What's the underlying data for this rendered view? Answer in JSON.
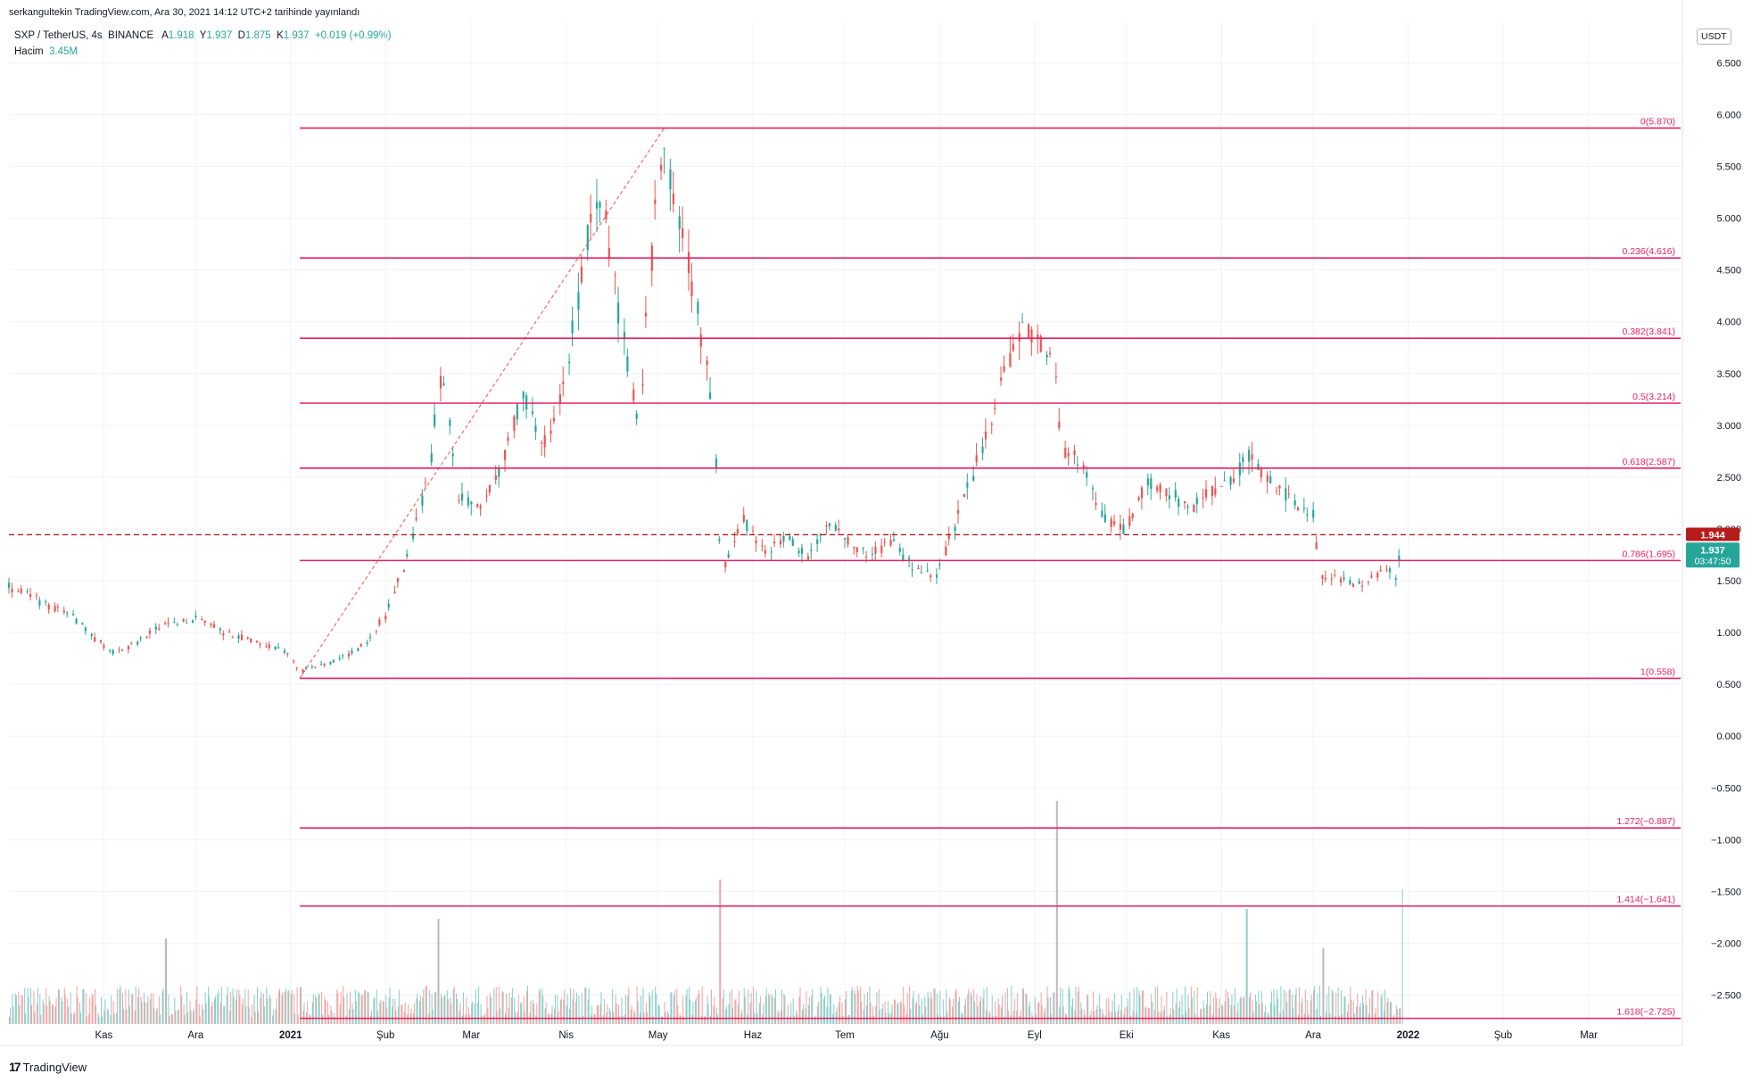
{
  "header": {
    "published": "serkangultekin TradingView.com, Ara 30, 2021 14:12 UTC+2 tarihinde yayınlandı"
  },
  "symbol": {
    "name": "SXP / TetherUS, 4s, BINANCE",
    "open_label": "A",
    "open": "1.918",
    "high_label": "Y",
    "high": "1.937",
    "low_label": "D",
    "low": "1.875",
    "close_label": "K",
    "close": "1.937",
    "change": "+0.019 (+0.99%)"
  },
  "volume": {
    "label": "Hacim",
    "value": "3.45M"
  },
  "currency": "USDT",
  "footer": {
    "logo_mark": "17",
    "brand": "TradingView"
  },
  "colors": {
    "up": "#26a69a",
    "down": "#ef5350",
    "fib_line": "#e91e63",
    "fib_label": "#e91e63",
    "last_price_line": "#b71c1c",
    "grid": "#f0f3fa",
    "trend": "#ef5350"
  },
  "chart_data": {
    "type": "candlestick",
    "symbol": "SXP / TetherUS",
    "interval": "4s",
    "exchange": "BINANCE",
    "y_axis": {
      "ticks": [
        "6.500",
        "6.000",
        "5.500",
        "5.000",
        "4.500",
        "4.000",
        "3.500",
        "3.000",
        "2.500",
        "2.000",
        "1.500",
        "1.000",
        "0.500",
        "0.000",
        "−0.500",
        "−1.000",
        "−1.500",
        "−2.000",
        "−2.500"
      ],
      "tick_values": [
        6.5,
        6.0,
        5.5,
        5.0,
        4.5,
        4.0,
        3.5,
        3.0,
        2.5,
        2.0,
        1.5,
        1.0,
        0.5,
        0.0,
        -0.5,
        -1.0,
        -1.5,
        -2.0,
        -2.5
      ],
      "range": [
        -2.78,
        6.9
      ]
    },
    "x_axis": {
      "labels": [
        "Kas",
        "Ara",
        "2021",
        "Şub",
        "Mar",
        "Nis",
        "May",
        "Haz",
        "Tem",
        "Ağu",
        "Eyl",
        "Eki",
        "Kas",
        "Ara",
        "2022",
        "Şub",
        "Mar"
      ],
      "bold": [
        "2021",
        "2022"
      ],
      "dates": [
        "2020-11-01",
        "2020-12-01",
        "2021-01-01",
        "2021-02-01",
        "2021-03-01",
        "2021-04-01",
        "2021-05-01",
        "2021-06-01",
        "2021-07-01",
        "2021-08-01",
        "2021-09-01",
        "2021-10-01",
        "2021-11-01",
        "2021-12-01",
        "2022-01-01",
        "2022-02-01",
        "2022-03-01"
      ],
      "range": [
        "2020-10-01",
        "2022-03-31"
      ]
    },
    "price_series": [
      [
        "2020-10-01",
        1.45
      ],
      [
        "2020-10-08",
        1.35
      ],
      [
        "2020-10-15",
        1.25
      ],
      [
        "2020-10-22",
        1.15
      ],
      [
        "2020-10-29",
        0.95
      ],
      [
        "2020-11-05",
        0.8
      ],
      [
        "2020-11-12",
        0.9
      ],
      [
        "2020-11-19",
        1.05
      ],
      [
        "2020-11-26",
        1.1
      ],
      [
        "2020-12-03",
        1.15
      ],
      [
        "2020-12-10",
        1.0
      ],
      [
        "2020-12-17",
        0.95
      ],
      [
        "2020-12-24",
        0.88
      ],
      [
        "2020-12-31",
        0.82
      ],
      [
        "2021-01-04",
        0.62
      ],
      [
        "2021-01-11",
        0.68
      ],
      [
        "2021-01-18",
        0.75
      ],
      [
        "2021-01-25",
        0.88
      ],
      [
        "2021-02-01",
        1.15
      ],
      [
        "2021-02-08",
        1.7
      ],
      [
        "2021-02-15",
        2.5
      ],
      [
        "2021-02-20",
        3.6
      ],
      [
        "2021-02-25",
        2.3
      ],
      [
        "2021-03-04",
        2.2
      ],
      [
        "2021-03-11",
        2.6
      ],
      [
        "2021-03-18",
        3.3
      ],
      [
        "2021-03-25",
        2.8
      ],
      [
        "2021-04-01",
        3.4
      ],
      [
        "2021-04-08",
        4.8
      ],
      [
        "2021-04-13",
        5.2
      ],
      [
        "2021-04-20",
        3.8
      ],
      [
        "2021-04-25",
        3.0
      ],
      [
        "2021-04-30",
        5.0
      ],
      [
        "2021-05-03",
        5.6
      ],
      [
        "2021-05-08",
        5.0
      ],
      [
        "2021-05-13",
        4.3
      ],
      [
        "2021-05-19",
        3.2
      ],
      [
        "2021-05-22",
        1.6
      ],
      [
        "2021-05-29",
        2.1
      ],
      [
        "2021-06-05",
        1.8
      ],
      [
        "2021-06-12",
        1.9
      ],
      [
        "2021-06-19",
        1.75
      ],
      [
        "2021-06-26",
        2.1
      ],
      [
        "2021-07-03",
        1.85
      ],
      [
        "2021-07-10",
        1.75
      ],
      [
        "2021-07-17",
        1.9
      ],
      [
        "2021-07-24",
        1.6
      ],
      [
        "2021-07-31",
        1.55
      ],
      [
        "2021-08-07",
        2.1
      ],
      [
        "2021-08-14",
        2.7
      ],
      [
        "2021-08-21",
        3.4
      ],
      [
        "2021-08-28",
        3.9
      ],
      [
        "2021-09-04",
        3.8
      ],
      [
        "2021-09-08",
        3.5
      ],
      [
        "2021-09-10",
        2.8
      ],
      [
        "2021-09-17",
        2.6
      ],
      [
        "2021-09-24",
        2.1
      ],
      [
        "2021-10-01",
        2.0
      ],
      [
        "2021-10-08",
        2.45
      ],
      [
        "2021-10-15",
        2.35
      ],
      [
        "2021-10-22",
        2.2
      ],
      [
        "2021-10-29",
        2.35
      ],
      [
        "2021-11-05",
        2.5
      ],
      [
        "2021-11-10",
        2.7
      ],
      [
        "2021-11-17",
        2.45
      ],
      [
        "2021-11-24",
        2.3
      ],
      [
        "2021-12-01",
        2.15
      ],
      [
        "2021-12-04",
        1.55
      ],
      [
        "2021-12-11",
        1.5
      ],
      [
        "2021-12-18",
        1.45
      ],
      [
        "2021-12-25",
        1.62
      ],
      [
        "2021-12-29",
        1.5
      ],
      [
        "2021-12-30",
        1.937
      ]
    ],
    "last_price": {
      "value": 1.944,
      "label": "1.944"
    },
    "current_price": {
      "value": 1.937,
      "label": "1.937",
      "countdown": "03:47:50"
    },
    "trend_line": {
      "from": [
        "2021-01-04",
        0.558
      ],
      "to": [
        "2021-05-03",
        5.87
      ]
    },
    "fibonacci": {
      "start_date": "2021-01-04",
      "levels": [
        {
          "ratio": "0",
          "value": 5.87,
          "label": "0(5.870)"
        },
        {
          "ratio": "0.236",
          "value": 4.616,
          "label": "0.236(4.616)"
        },
        {
          "ratio": "0.382",
          "value": 3.841,
          "label": "0.382(3.841)"
        },
        {
          "ratio": "0.5",
          "value": 3.214,
          "label": "0.5(3.214)"
        },
        {
          "ratio": "0.618",
          "value": 2.587,
          "label": "0.618(2.587)"
        },
        {
          "ratio": "0.786",
          "value": 1.695,
          "label": "0.786(1.695)"
        },
        {
          "ratio": "1",
          "value": 0.558,
          "label": "1(0.558)"
        },
        {
          "ratio": "1.272",
          "value": -0.887,
          "label": "1.272(−0.887)"
        },
        {
          "ratio": "1.414",
          "value": -1.641,
          "label": "1.414(−1.641)"
        },
        {
          "ratio": "1.618",
          "value": -2.725,
          "label": "1.618(−2.725)"
        }
      ]
    },
    "volume_spikes": [
      [
        "2020-11-21",
        0.3
      ],
      [
        "2021-02-18",
        0.4
      ],
      [
        "2021-05-21",
        0.6
      ],
      [
        "2021-09-08",
        1.0
      ],
      [
        "2021-11-09",
        0.45
      ],
      [
        "2021-12-04",
        0.25
      ],
      [
        "2021-12-30",
        0.55
      ]
    ]
  }
}
